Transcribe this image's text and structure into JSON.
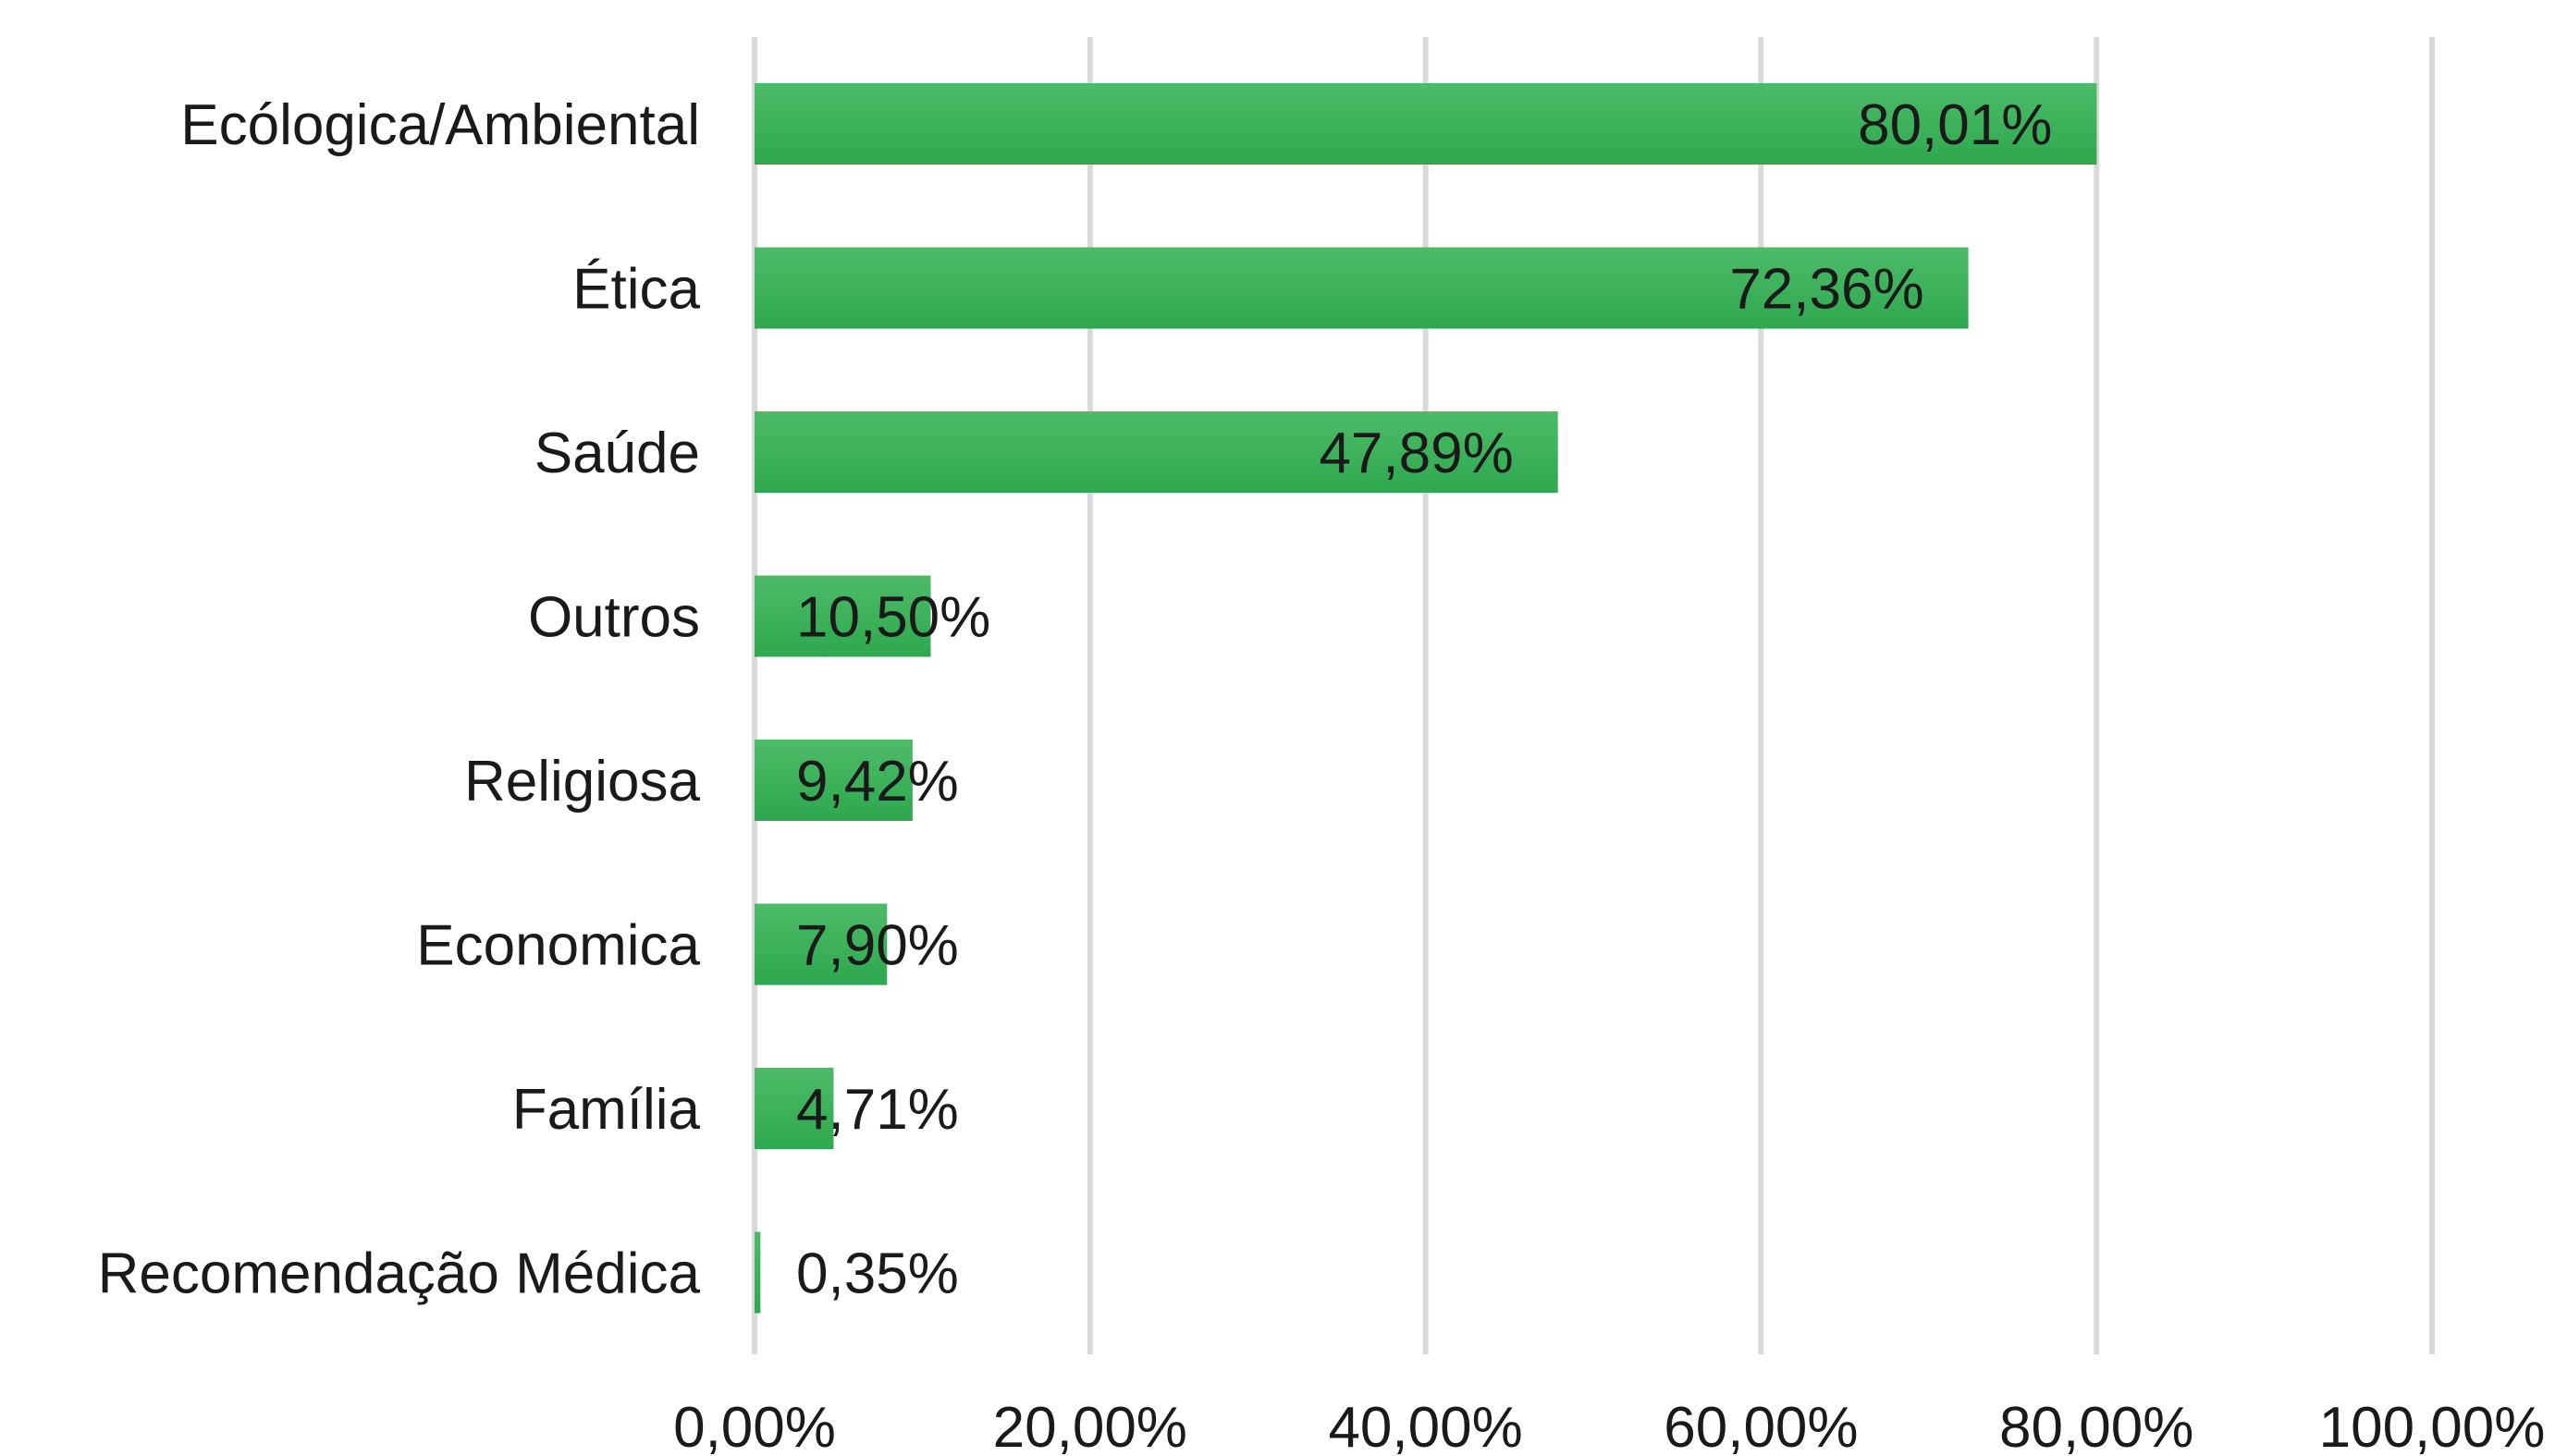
{
  "chart_data": {
    "type": "bar",
    "orientation": "horizontal",
    "categories": [
      "Ecólogica/Ambiental",
      "Ética",
      "Saúde",
      "Outros",
      "Religiosa",
      "Economica",
      "Família",
      "Recomendação Médica"
    ],
    "values": [
      80.01,
      72.36,
      47.89,
      10.5,
      9.42,
      7.9,
      4.71,
      0.35
    ],
    "value_labels": [
      "80,01%",
      "72,36%",
      "47,89%",
      "10,50%",
      "9,42%",
      "7,90%",
      "4,71%",
      "0,35%"
    ],
    "xlim": [
      0,
      100
    ],
    "x_ticks": [
      0,
      20,
      40,
      60,
      80,
      100
    ],
    "x_tick_labels": [
      "0,00%",
      "20,00%",
      "40,00%",
      "60,00%",
      "80,00%",
      "100,00%"
    ],
    "grid": "vertical",
    "bar_color": "#2ea84e",
    "bar_color_light": "#4dbb68",
    "grid_color": "#d9d9d9",
    "title": "",
    "xlabel": "",
    "ylabel": ""
  }
}
